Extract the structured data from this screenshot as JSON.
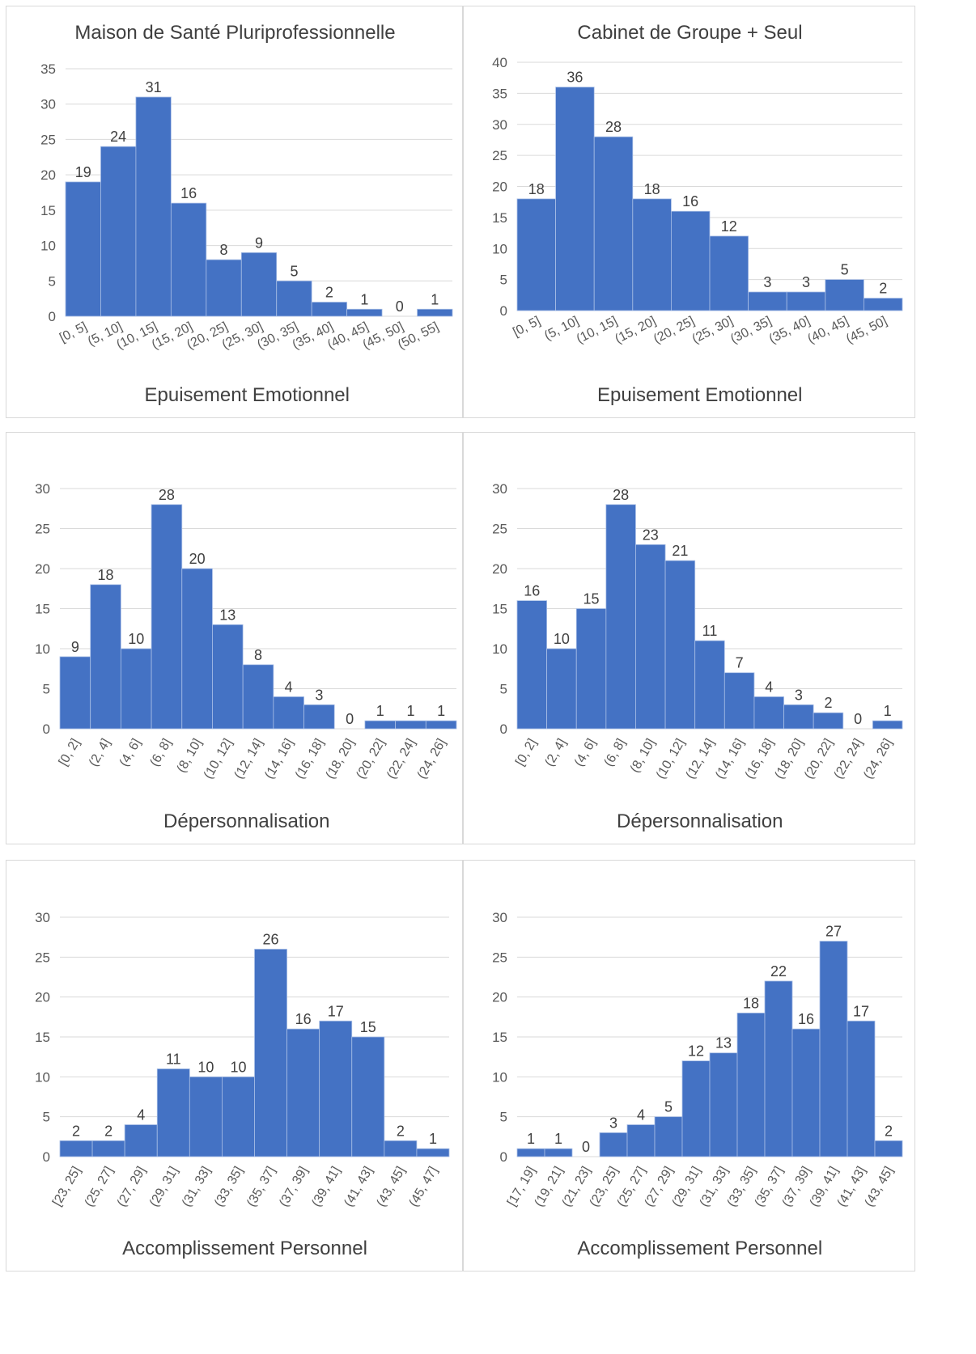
{
  "colors": {
    "bar": "#4472c4",
    "grid": "#d9d9d9",
    "text": "#404040"
  },
  "chart_data": [
    {
      "type": "bar",
      "title": "Maison de Santé Pluriprofessionnelle",
      "xlabel": "Epuisement Emotionnel",
      "ylabel": "",
      "ylim": [
        0,
        35
      ],
      "ytick_step": 5,
      "grid": true,
      "categories": [
        "[0, 5]",
        "(5, 10]",
        "(10, 15]",
        "(15, 20]",
        "(20, 25]",
        "(25, 30]",
        "(30, 35]",
        "(35, 40]",
        "(40, 45]",
        "(45, 50]",
        "(50, 55]"
      ],
      "values": [
        19,
        24,
        31,
        16,
        8,
        9,
        5,
        2,
        1,
        0,
        1
      ]
    },
    {
      "type": "bar",
      "title": "Cabinet de Groupe + Seul",
      "xlabel": "Epuisement Emotionnel",
      "ylabel": "",
      "ylim": [
        0,
        40
      ],
      "ytick_step": 5,
      "grid": true,
      "categories": [
        "[0, 5]",
        "(5, 10]",
        "(10, 15]",
        "(15, 20]",
        "(20, 25]",
        "(25, 30]",
        "(30, 35]",
        "(35, 40]",
        "(40, 45]",
        "(45, 50]"
      ],
      "values": [
        18,
        36,
        28,
        18,
        16,
        12,
        3,
        3,
        5,
        2
      ]
    },
    {
      "type": "bar",
      "title": "",
      "xlabel": "Dépersonnalisation",
      "ylabel": "",
      "ylim": [
        0,
        30
      ],
      "ytick_step": 5,
      "grid": true,
      "categories": [
        "[0, 2]",
        "(2, 4]",
        "(4, 6]",
        "(6, 8]",
        "(8, 10]",
        "(10, 12]",
        "(12, 14]",
        "(14, 16]",
        "(16, 18]",
        "(18, 20]",
        "(20, 22]",
        "(22, 24]",
        "(24, 26]"
      ],
      "values": [
        9,
        18,
        10,
        28,
        20,
        13,
        8,
        4,
        3,
        0,
        1,
        1,
        1
      ]
    },
    {
      "type": "bar",
      "title": "",
      "xlabel": "Dépersonnalisation",
      "ylabel": "",
      "ylim": [
        0,
        30
      ],
      "ytick_step": 5,
      "grid": true,
      "categories": [
        "[0, 2]",
        "(2, 4]",
        "(4, 6]",
        "(6, 8]",
        "(8, 10]",
        "(10, 12]",
        "(12, 14]",
        "(14, 16]",
        "(16, 18]",
        "(18, 20]",
        "(20, 22]",
        "(22, 24]",
        "(24, 26]"
      ],
      "values": [
        16,
        10,
        15,
        28,
        23,
        21,
        11,
        7,
        4,
        3,
        2,
        0,
        1
      ]
    },
    {
      "type": "bar",
      "title": "",
      "xlabel": "Accomplissement Personnel",
      "ylabel": "",
      "ylim": [
        0,
        30
      ],
      "ytick_step": 5,
      "grid": true,
      "categories": [
        "[23, 25]",
        "(25, 27]",
        "(27, 29]",
        "(29, 31]",
        "(31, 33]",
        "(33, 35]",
        "(35, 37]",
        "(37, 39]",
        "(39, 41]",
        "(41, 43]",
        "(43, 45]",
        "(45, 47]"
      ],
      "values": [
        2,
        2,
        4,
        11,
        10,
        10,
        26,
        16,
        17,
        15,
        2,
        1
      ]
    },
    {
      "type": "bar",
      "title": "",
      "xlabel": "Accomplissement Personnel",
      "ylabel": "",
      "ylim": [
        0,
        30
      ],
      "ytick_step": 5,
      "grid": true,
      "categories": [
        "[17, 19]",
        "(19, 21]",
        "(21, 23]",
        "(23, 25]",
        "(25, 27]",
        "(27, 29]",
        "(29, 31]",
        "(31, 33]",
        "(33, 35]",
        "(35, 37]",
        "(37, 39]",
        "(39, 41]",
        "(41, 43]",
        "(43, 45]"
      ],
      "values": [
        1,
        1,
        0,
        3,
        4,
        5,
        12,
        13,
        18,
        22,
        16,
        27,
        17,
        2
      ]
    }
  ]
}
